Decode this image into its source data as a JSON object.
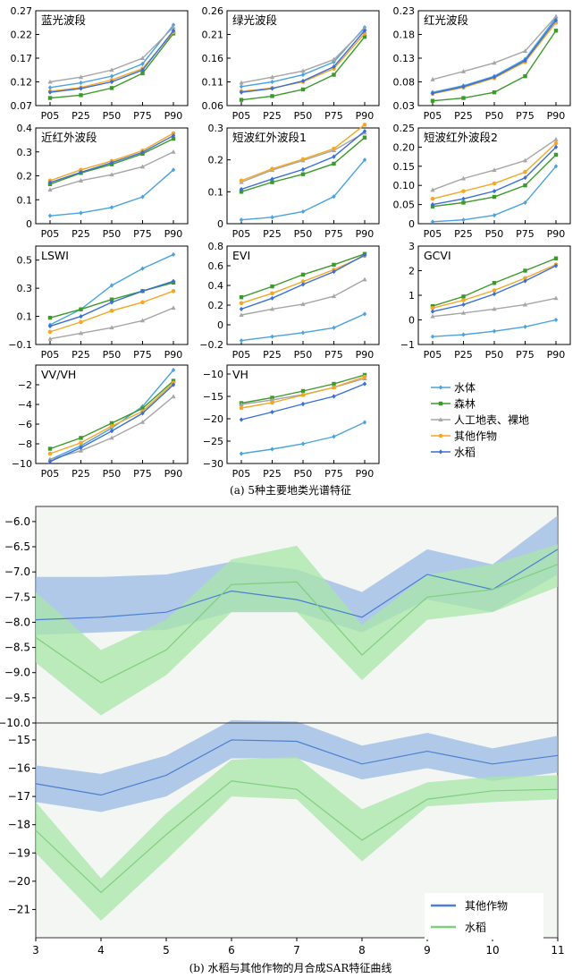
{
  "captions": {
    "a": "(a) 5种主要地类光谱特征",
    "b": "(b) 水稻与其他作物的月合成SAR特征曲线"
  },
  "panel_a": {
    "legend": [
      {
        "name": "水体",
        "color": "#4aa3df",
        "marker": "diamond"
      },
      {
        "name": "森林",
        "color": "#3c9a2a",
        "marker": "square"
      },
      {
        "name": "人工地表、裸地",
        "color": "#a6a6a6",
        "marker": "triangle"
      },
      {
        "name": "其他作物",
        "color": "#f5a623",
        "marker": "circle"
      },
      {
        "name": "水稻",
        "color": "#3a6fd8",
        "marker": "diamond"
      }
    ]
  },
  "chart_data": [
    {
      "type": "line",
      "title": "蓝光波段",
      "categories": [
        "P05",
        "P25",
        "P50",
        "P75",
        "P90"
      ],
      "ylim": [
        0.07,
        0.27
      ],
      "yticks": [
        "0.07",
        "0.12",
        "0.17",
        "0.22",
        "0.27"
      ],
      "series": [
        {
          "name": "水体",
          "values": [
            0.108,
            0.118,
            0.132,
            0.158,
            0.24
          ]
        },
        {
          "name": "森林",
          "values": [
            0.086,
            0.092,
            0.107,
            0.138,
            0.222
          ]
        },
        {
          "name": "人工地表、裸地",
          "values": [
            0.12,
            0.13,
            0.145,
            0.17,
            0.235
          ]
        },
        {
          "name": "其他作物",
          "values": [
            0.1,
            0.108,
            0.124,
            0.148,
            0.225
          ]
        },
        {
          "name": "水稻",
          "values": [
            0.098,
            0.106,
            0.12,
            0.145,
            0.228
          ]
        }
      ]
    },
    {
      "type": "line",
      "title": "绿光波段",
      "categories": [
        "P05",
        "P25",
        "P50",
        "P75",
        "P90"
      ],
      "ylim": [
        0.06,
        0.26
      ],
      "yticks": [
        "0.06",
        "0.11",
        "0.16",
        "0.21",
        "0.26"
      ],
      "series": [
        {
          "name": "水体",
          "values": [
            0.1,
            0.11,
            0.125,
            0.152,
            0.225
          ]
        },
        {
          "name": "森林",
          "values": [
            0.072,
            0.08,
            0.094,
            0.125,
            0.205
          ]
        },
        {
          "name": "人工地表、裸地",
          "values": [
            0.108,
            0.12,
            0.133,
            0.157,
            0.222
          ]
        },
        {
          "name": "其他作物",
          "values": [
            0.09,
            0.097,
            0.11,
            0.138,
            0.212
          ]
        },
        {
          "name": "水稻",
          "values": [
            0.088,
            0.096,
            0.112,
            0.142,
            0.218
          ]
        }
      ]
    },
    {
      "type": "line",
      "title": "红光波段",
      "categories": [
        "P05",
        "P25",
        "P50",
        "P75",
        "P90"
      ],
      "ylim": [
        0.03,
        0.23
      ],
      "yticks": [
        "0.03",
        "0.08",
        "0.13",
        "0.18",
        "0.23"
      ],
      "series": [
        {
          "name": "水体",
          "values": [
            0.058,
            0.072,
            0.092,
            0.128,
            0.215
          ]
        },
        {
          "name": "森林",
          "values": [
            0.04,
            0.046,
            0.058,
            0.092,
            0.188
          ]
        },
        {
          "name": "人工地表、裸地",
          "values": [
            0.085,
            0.102,
            0.12,
            0.145,
            0.218
          ]
        },
        {
          "name": "其他作物",
          "values": [
            0.055,
            0.068,
            0.088,
            0.122,
            0.205
          ]
        },
        {
          "name": "水稻",
          "values": [
            0.056,
            0.07,
            0.09,
            0.125,
            0.21
          ]
        }
      ]
    },
    {
      "type": "line",
      "title": "近红外波段",
      "categories": [
        "P05",
        "P25",
        "P50",
        "P75",
        "P90"
      ],
      "ylim": [
        0,
        0.4
      ],
      "yticks": [
        "0",
        "0.1",
        "0.2",
        "0.3",
        "0.4"
      ],
      "series": [
        {
          "name": "水体",
          "values": [
            0.033,
            0.045,
            0.068,
            0.112,
            0.225
          ]
        },
        {
          "name": "森林",
          "values": [
            0.165,
            0.212,
            0.248,
            0.292,
            0.355
          ]
        },
        {
          "name": "人工地表、裸地",
          "values": [
            0.142,
            0.18,
            0.205,
            0.238,
            0.3
          ]
        },
        {
          "name": "其他作物",
          "values": [
            0.18,
            0.225,
            0.262,
            0.305,
            0.378
          ]
        },
        {
          "name": "水稻",
          "values": [
            0.172,
            0.215,
            0.255,
            0.298,
            0.368
          ]
        }
      ]
    },
    {
      "type": "line",
      "title": "短波红外波段1",
      "categories": [
        "P05",
        "P25",
        "P50",
        "P75",
        "P90"
      ],
      "ylim": [
        0,
        0.3
      ],
      "yticks": [
        "0",
        "0.1",
        "0.2",
        "0.3"
      ],
      "series": [
        {
          "name": "水体",
          "values": [
            0.012,
            0.02,
            0.038,
            0.085,
            0.2
          ]
        },
        {
          "name": "森林",
          "values": [
            0.1,
            0.13,
            0.155,
            0.188,
            0.27
          ]
        },
        {
          "name": "人工地表、裸地",
          "values": [
            0.13,
            0.168,
            0.198,
            0.23,
            0.285
          ]
        },
        {
          "name": "其他作物",
          "values": [
            0.135,
            0.172,
            0.202,
            0.235,
            0.31
          ]
        },
        {
          "name": "水稻",
          "values": [
            0.108,
            0.14,
            0.17,
            0.21,
            0.29
          ]
        }
      ]
    },
    {
      "type": "line",
      "title": "短波红外波段2",
      "categories": [
        "P05",
        "P25",
        "P50",
        "P75",
        "P90"
      ],
      "ylim": [
        0,
        0.25
      ],
      "yticks": [
        "0",
        "0.05",
        "0.10",
        "0.15",
        "0.20",
        "0.25"
      ],
      "series": [
        {
          "name": "水体",
          "values": [
            0.005,
            0.01,
            0.022,
            0.055,
            0.15
          ]
        },
        {
          "name": "森林",
          "values": [
            0.045,
            0.055,
            0.07,
            0.1,
            0.18
          ]
        },
        {
          "name": "人工地表、裸地",
          "values": [
            0.088,
            0.118,
            0.14,
            0.165,
            0.22
          ]
        },
        {
          "name": "其他作物",
          "values": [
            0.065,
            0.085,
            0.105,
            0.135,
            0.21
          ]
        },
        {
          "name": "水稻",
          "values": [
            0.05,
            0.065,
            0.085,
            0.12,
            0.2
          ]
        }
      ]
    },
    {
      "type": "line",
      "title": "LSWI",
      "categories": [
        "P05",
        "P25",
        "P50",
        "P75",
        "P90"
      ],
      "ylim": [
        -0.1,
        0.6
      ],
      "yticks": [
        "−0.1",
        "0.1",
        "0.3",
        "0.5"
      ],
      "ytickvals": [
        -0.1,
        0.1,
        0.3,
        0.5
      ],
      "series": [
        {
          "name": "水体",
          "values": [
            0.04,
            0.15,
            0.32,
            0.44,
            0.54
          ]
        },
        {
          "name": "森林",
          "values": [
            0.09,
            0.15,
            0.22,
            0.28,
            0.34
          ]
        },
        {
          "name": "人工地表、裸地",
          "values": [
            -0.06,
            -0.02,
            0.02,
            0.07,
            0.16
          ]
        },
        {
          "name": "其他作物",
          "values": [
            -0.01,
            0.06,
            0.14,
            0.2,
            0.28
          ]
        },
        {
          "name": "水稻",
          "values": [
            0.03,
            0.1,
            0.2,
            0.28,
            0.35
          ]
        }
      ]
    },
    {
      "type": "line",
      "title": "EVI",
      "categories": [
        "P05",
        "P25",
        "P50",
        "P75",
        "P90"
      ],
      "ylim": [
        -0.2,
        0.8
      ],
      "yticks": [
        "−0.2",
        "0",
        "0.2",
        "0.4",
        "0.6",
        "0.8"
      ],
      "ytickvals": [
        -0.2,
        0,
        0.2,
        0.4,
        0.6,
        0.8
      ],
      "series": [
        {
          "name": "水体",
          "values": [
            -0.16,
            -0.12,
            -0.08,
            -0.03,
            0.11
          ]
        },
        {
          "name": "森林",
          "values": [
            0.28,
            0.39,
            0.51,
            0.61,
            0.72
          ]
        },
        {
          "name": "人工地表、裸地",
          "values": [
            0.1,
            0.16,
            0.21,
            0.29,
            0.46
          ]
        },
        {
          "name": "其他作物",
          "values": [
            0.22,
            0.32,
            0.44,
            0.56,
            0.7
          ]
        },
        {
          "name": "水稻",
          "values": [
            0.16,
            0.27,
            0.41,
            0.54,
            0.71
          ]
        }
      ]
    },
    {
      "type": "line",
      "title": "GCVI",
      "categories": [
        "P05",
        "P25",
        "P50",
        "P75",
        "P90"
      ],
      "ylim": [
        -1,
        3
      ],
      "yticks": [
        "−1",
        "0",
        "1",
        "2",
        "3"
      ],
      "ytickvals": [
        -1,
        0,
        1,
        2,
        3
      ],
      "series": [
        {
          "name": "水体",
          "values": [
            -0.68,
            -0.6,
            -0.46,
            -0.28,
            0.0
          ]
        },
        {
          "name": "森林",
          "values": [
            0.56,
            0.95,
            1.5,
            2.0,
            2.5
          ]
        },
        {
          "name": "人工地表、裸地",
          "values": [
            0.14,
            0.28,
            0.44,
            0.62,
            0.88
          ]
        },
        {
          "name": "其他作物",
          "values": [
            0.48,
            0.8,
            1.2,
            1.7,
            2.25
          ]
        },
        {
          "name": "水稻",
          "values": [
            0.34,
            0.62,
            1.05,
            1.58,
            2.2
          ]
        }
      ]
    },
    {
      "type": "line",
      "title": "VV/VH",
      "categories": [
        "P05",
        "P25",
        "P50",
        "P75",
        "P90"
      ],
      "ylim": [
        -10,
        0
      ],
      "yticks": [
        "−10",
        "−8",
        "−6",
        "−4",
        "−2"
      ],
      "ytickvals": [
        -10,
        -8,
        -6,
        -4,
        -2
      ],
      "series": [
        {
          "name": "水体",
          "values": [
            -9.6,
            -8.2,
            -6.4,
            -4.2,
            -0.5
          ]
        },
        {
          "name": "森林",
          "values": [
            -8.5,
            -7.4,
            -5.9,
            -4.4,
            -1.6
          ]
        },
        {
          "name": "人工地表、裸地",
          "values": [
            -9.6,
            -8.7,
            -7.4,
            -5.8,
            -3.2
          ]
        },
        {
          "name": "其他作物",
          "values": [
            -9.0,
            -7.9,
            -6.2,
            -4.7,
            -1.8
          ]
        },
        {
          "name": "水稻",
          "values": [
            -9.8,
            -8.4,
            -6.7,
            -4.9,
            -2.0
          ]
        }
      ]
    },
    {
      "type": "line",
      "title": "VH",
      "categories": [
        "P05",
        "P25",
        "P50",
        "P75",
        "P90"
      ],
      "ylim": [
        -30,
        -8
      ],
      "yticks": [
        "−30",
        "−25",
        "−20",
        "−15",
        "−10"
      ],
      "ytickvals": [
        -30,
        -25,
        -20,
        -15,
        -10
      ],
      "series": [
        {
          "name": "水体",
          "values": [
            -27.8,
            -26.8,
            -25.6,
            -24.0,
            -20.8
          ]
        },
        {
          "name": "森林",
          "values": [
            -16.5,
            -15.3,
            -13.8,
            -12.2,
            -10.2
          ]
        },
        {
          "name": "人工地表、裸地",
          "values": [
            -16.8,
            -15.8,
            -14.6,
            -13.0,
            -11.0
          ]
        },
        {
          "name": "其他作物",
          "values": [
            -17.6,
            -16.4,
            -14.7,
            -13.0,
            -10.6
          ]
        },
        {
          "name": "水稻",
          "values": [
            -20.2,
            -18.5,
            -16.7,
            -15.0,
            -12.2
          ]
        }
      ]
    },
    {
      "type": "area",
      "x": [
        3,
        4,
        5,
        6,
        7,
        8,
        9,
        10,
        11
      ],
      "ylim": [
        -10.0,
        -5.7
      ],
      "yticks": [
        "−10.0",
        "−9.5",
        "−9.0",
        "−8.5",
        "−8.0",
        "−7.5",
        "−7.0",
        "−6.5",
        "−6.0"
      ],
      "ytickvals": [
        -10.0,
        -9.5,
        -9.0,
        -8.5,
        -8.0,
        -7.5,
        -7.0,
        -6.5,
        -6.0
      ],
      "series": [
        {
          "name": "其他作物",
          "color": "#4c7fd0",
          "band": "#9ab9e6",
          "mean": [
            -7.95,
            -7.9,
            -7.8,
            -7.38,
            -7.55,
            -7.9,
            -7.05,
            -7.35,
            -6.55
          ],
          "upper": [
            -7.1,
            -7.1,
            -7.05,
            -6.8,
            -6.95,
            -7.4,
            -6.55,
            -6.85,
            -5.88
          ],
          "lower": [
            -8.25,
            -8.2,
            -8.15,
            -7.8,
            -7.8,
            -8.2,
            -7.55,
            -7.8,
            -7.05
          ]
        },
        {
          "name": "水稻",
          "color": "#7fcf7f",
          "band": "#a8e6a8",
          "mean": [
            -8.3,
            -9.2,
            -8.55,
            -7.25,
            -7.2,
            -8.65,
            -7.5,
            -7.35,
            -6.85
          ],
          "upper": [
            -7.4,
            -8.55,
            -7.95,
            -6.75,
            -6.48,
            -8.05,
            -7.05,
            -6.85,
            -6.45
          ],
          "lower": [
            -8.8,
            -9.85,
            -9.05,
            -7.8,
            -7.8,
            -9.15,
            -7.95,
            -7.8,
            -7.3
          ]
        }
      ]
    },
    {
      "type": "area",
      "x": [
        3,
        4,
        5,
        6,
        7,
        8,
        9,
        10,
        11
      ],
      "xticks": [
        "3",
        "4",
        "5",
        "6",
        "7",
        "8",
        "9",
        "10",
        "11"
      ],
      "ylim": [
        -22,
        -14.4
      ],
      "yticks": [
        "−21",
        "−20",
        "−19",
        "−18",
        "−17",
        "−16",
        "−15"
      ],
      "ytickvals": [
        -21,
        -20,
        -19,
        -18,
        -17,
        -16,
        -15
      ],
      "legend": "bottom-right",
      "series": [
        {
          "name": "其他作物",
          "color": "#4c7fd0",
          "band": "#9ab9e6",
          "mean": [
            -16.55,
            -16.95,
            -16.25,
            -15.0,
            -15.05,
            -15.85,
            -15.4,
            -15.85,
            -15.55
          ],
          "upper": [
            -15.9,
            -16.2,
            -15.55,
            -14.3,
            -14.35,
            -15.2,
            -14.75,
            -15.3,
            -14.85
          ],
          "lower": [
            -17.2,
            -17.55,
            -17.0,
            -15.65,
            -15.65,
            -16.4,
            -16.0,
            -16.45,
            -16.15
          ]
        },
        {
          "name": "水稻",
          "color": "#7fcf7f",
          "band": "#a8e6a8",
          "mean": [
            -18.2,
            -20.4,
            -18.35,
            -16.45,
            -16.75,
            -18.55,
            -17.1,
            -16.8,
            -16.75
          ],
          "upper": [
            -17.2,
            -19.9,
            -17.6,
            -15.7,
            -15.6,
            -17.45,
            -16.5,
            -16.3,
            -16.25
          ],
          "lower": [
            -19.0,
            -21.4,
            -19.25,
            -17.0,
            -17.1,
            -19.3,
            -17.35,
            -17.2,
            -17.1
          ]
        }
      ]
    }
  ]
}
